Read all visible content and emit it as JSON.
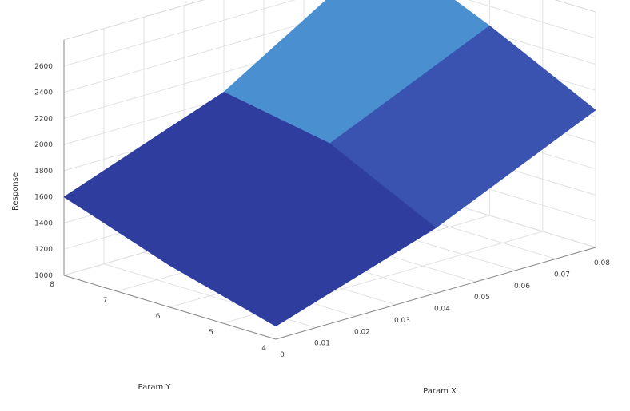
{
  "chart_data": {
    "type": "surface",
    "title": "",
    "xlabel": "Param X",
    "ylabel": "Param Y",
    "zlabel": "Response",
    "x": [
      0,
      0.04,
      0.08
    ],
    "y": [
      4,
      6,
      8
    ],
    "z": [
      [
        1100,
        1320,
        1600
      ],
      [
        1500,
        1900,
        2050
      ],
      [
        2050,
        2450,
        2800
      ]
    ],
    "xlim": [
      0,
      0.08
    ],
    "ylim": [
      4,
      8
    ],
    "zlim": [
      1000,
      2800
    ],
    "x_ticks": [
      "0",
      "0.01",
      "0.02",
      "0.03",
      "0.04",
      "0.05",
      "0.06",
      "0.07",
      "0.08"
    ],
    "y_ticks": [
      "4",
      "5",
      "6",
      "7",
      "8"
    ],
    "z_ticks": [
      "1000",
      "1200",
      "1400",
      "1600",
      "1800",
      "2000",
      "2200",
      "2400",
      "2600"
    ],
    "grid": true,
    "colormap": [
      "#2a2f8c",
      "#2f3e9e",
      "#3a53b0",
      "#4a8fd0",
      "#6ccbe0"
    ]
  }
}
